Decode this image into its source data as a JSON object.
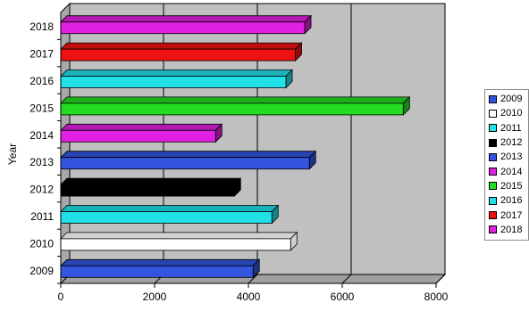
{
  "chart_data": {
    "type": "bar",
    "orientation": "horizontal",
    "style": "3d",
    "categories": [
      "2009",
      "2010",
      "2011",
      "2012",
      "2013",
      "2014",
      "2015",
      "2016",
      "2017",
      "2018"
    ],
    "values": [
      4100,
      4900,
      4500,
      3700,
      5300,
      3300,
      7300,
      4800,
      5000,
      5200
    ],
    "colors": [
      "#3355e0",
      "#ffffff",
      "#22e0e8",
      "#000000",
      "#3355e0",
      "#e020e0",
      "#22dd22",
      "#22e0e8",
      "#ee1111",
      "#e020e0"
    ],
    "ylabel": "Year",
    "xlabel": "",
    "xlim": [
      0,
      8000
    ],
    "xticks": [
      "0",
      "2000",
      "4000",
      "6000",
      "8000"
    ],
    "grid": true,
    "plot_background": "#c0c0c0",
    "legend": {
      "position": "right",
      "entries": [
        "2009",
        "2010",
        "2011",
        "2012",
        "2013",
        "2014",
        "2015",
        "2016",
        "2017",
        "2018"
      ]
    }
  }
}
